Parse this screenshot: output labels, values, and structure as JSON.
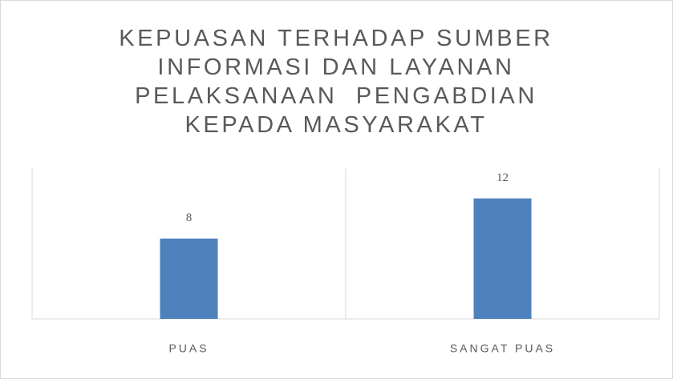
{
  "chart_data": {
    "type": "bar",
    "title": "KEPUASAN TERHADAP SUMBER INFORMASI DAN LAYANAN PELAKSANAAN  PENGABDIAN KEPADA MASYARAKAT",
    "categories": [
      "PUAS",
      "SANGAT PUAS"
    ],
    "values": [
      8,
      12
    ],
    "color": "#4f81bd",
    "ylim": [
      0,
      15
    ],
    "grid": true
  }
}
